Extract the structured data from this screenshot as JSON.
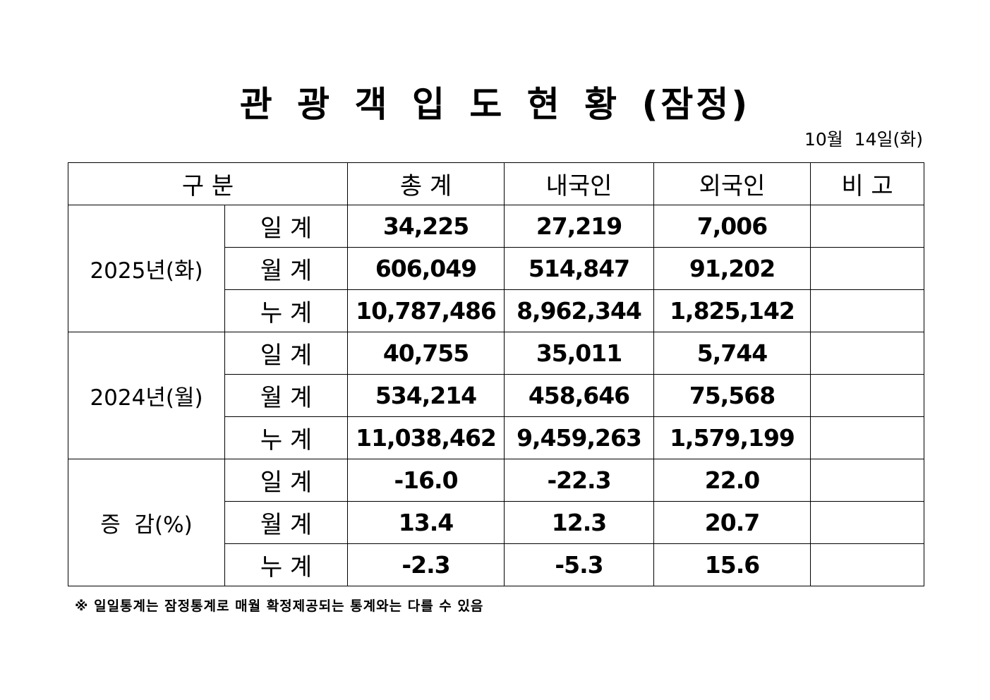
{
  "title": "관 광 객 입 도 현 황 (잠정)",
  "date": "10월  14일(화)",
  "table": {
    "headers": {
      "category": "구   분",
      "total": "총   계",
      "domestic": "내국인",
      "foreign": "외국인",
      "remarks": "비   고"
    },
    "sub_labels": [
      "일  계",
      "월  계",
      "누  계"
    ],
    "groups": [
      {
        "label": "2025년(화)",
        "rows": [
          {
            "total": "34,225",
            "domestic": "27,219",
            "foreign": "7,006",
            "remarks": ""
          },
          {
            "total": "606,049",
            "domestic": "514,847",
            "foreign": "91,202",
            "remarks": ""
          },
          {
            "total": "10,787,486",
            "domestic": "8,962,344",
            "foreign": "1,825,142",
            "remarks": ""
          }
        ]
      },
      {
        "label": "2024년(월)",
        "rows": [
          {
            "total": "40,755",
            "domestic": "35,011",
            "foreign": "5,744",
            "remarks": ""
          },
          {
            "total": "534,214",
            "domestic": "458,646",
            "foreign": "75,568",
            "remarks": ""
          },
          {
            "total": "11,038,462",
            "domestic": "9,459,263",
            "foreign": "1,579,199",
            "remarks": ""
          }
        ]
      },
      {
        "label": "증  감(%)",
        "rows": [
          {
            "total": "-16.0",
            "domestic": "-22.3",
            "foreign": "22.0",
            "remarks": ""
          },
          {
            "total": "13.4",
            "domestic": "12.3",
            "foreign": "20.7",
            "remarks": ""
          },
          {
            "total": "-2.3",
            "domestic": "-5.3",
            "foreign": "15.6",
            "remarks": ""
          }
        ]
      }
    ]
  },
  "note": "※ 일일통계는 잠정통계로 매월 확정제공되는 통계와는 다를 수 있음"
}
